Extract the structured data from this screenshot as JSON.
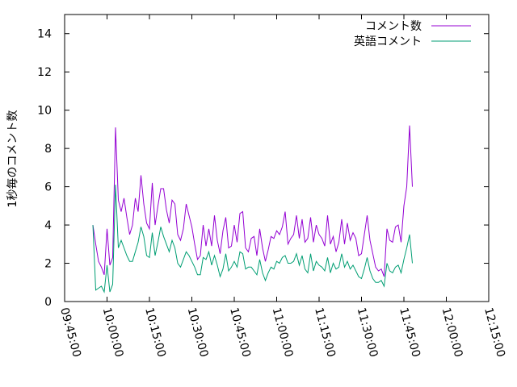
{
  "chart_data": {
    "type": "line",
    "title": "",
    "xlabel": "",
    "ylabel": "1秒毎のコメント数",
    "xlim": [
      "09:45:00",
      "12:15:00"
    ],
    "ylim": [
      0,
      15
    ],
    "xticks": [
      "09:45:00",
      "10:00:00",
      "10:15:00",
      "10:30:00",
      "10:45:00",
      "11:00:00",
      "11:15:00",
      "11:30:00",
      "11:45:00",
      "12:00:00",
      "12:15:00"
    ],
    "yticks": [
      0,
      2,
      4,
      6,
      8,
      10,
      12,
      14
    ],
    "grid": false,
    "legend_position": "top-right",
    "series": [
      {
        "name": "コメント数",
        "color": "#9400d3",
        "points": [
          [
            "09:55:00",
            4.0
          ],
          [
            "09:56:00",
            3.0
          ],
          [
            "09:57:00",
            2.1
          ],
          [
            "09:58:00",
            1.8
          ],
          [
            "09:59:00",
            1.4
          ],
          [
            "10:00:00",
            3.8
          ],
          [
            "10:01:00",
            1.9
          ],
          [
            "10:02:00",
            2.3
          ],
          [
            "10:03:00",
            9.1
          ],
          [
            "10:04:00",
            5.3
          ],
          [
            "10:05:00",
            4.7
          ],
          [
            "10:06:00",
            5.4
          ],
          [
            "10:07:00",
            4.4
          ],
          [
            "10:08:00",
            3.5
          ],
          [
            "10:09:00",
            4.0
          ],
          [
            "10:10:00",
            5.4
          ],
          [
            "10:11:00",
            4.7
          ],
          [
            "10:12:00",
            6.6
          ],
          [
            "10:13:00",
            5.1
          ],
          [
            "10:14:00",
            4.1
          ],
          [
            "10:15:00",
            3.8
          ],
          [
            "10:16:00",
            6.2
          ],
          [
            "10:17:00",
            4.0
          ],
          [
            "10:18:00",
            5.0
          ],
          [
            "10:19:00",
            5.9
          ],
          [
            "10:20:00",
            5.9
          ],
          [
            "10:21:00",
            4.8
          ],
          [
            "10:22:00",
            4.1
          ],
          [
            "10:23:00",
            5.3
          ],
          [
            "10:24:00",
            5.1
          ],
          [
            "10:25:00",
            3.5
          ],
          [
            "10:26:00",
            3.2
          ],
          [
            "10:27:00",
            3.8
          ],
          [
            "10:28:00",
            5.1
          ],
          [
            "10:29:00",
            4.5
          ],
          [
            "10:30:00",
            3.9
          ],
          [
            "10:31:00",
            3.0
          ],
          [
            "10:32:00",
            2.2
          ],
          [
            "10:33:00",
            2.4
          ],
          [
            "10:34:00",
            4.0
          ],
          [
            "10:35:00",
            2.9
          ],
          [
            "10:36:00",
            3.8
          ],
          [
            "10:37:00",
            2.9
          ],
          [
            "10:38:00",
            4.5
          ],
          [
            "10:39:00",
            3.2
          ],
          [
            "10:40:00",
            2.5
          ],
          [
            "10:41:00",
            3.7
          ],
          [
            "10:42:00",
            4.4
          ],
          [
            "10:43:00",
            2.8
          ],
          [
            "10:44:00",
            2.9
          ],
          [
            "10:45:00",
            4.0
          ],
          [
            "10:46:00",
            3.1
          ],
          [
            "10:47:00",
            4.6
          ],
          [
            "10:48:00",
            4.7
          ],
          [
            "10:49:00",
            2.8
          ],
          [
            "10:50:00",
            2.6
          ],
          [
            "10:51:00",
            3.3
          ],
          [
            "10:52:00",
            3.4
          ],
          [
            "10:53:00",
            2.4
          ],
          [
            "10:54:00",
            3.8
          ],
          [
            "10:55:00",
            2.8
          ],
          [
            "10:56:00",
            2.1
          ],
          [
            "10:57:00",
            2.7
          ],
          [
            "10:58:00",
            3.4
          ],
          [
            "10:59:00",
            3.3
          ],
          [
            "11:00:00",
            3.7
          ],
          [
            "11:01:00",
            3.5
          ],
          [
            "11:02:00",
            3.9
          ],
          [
            "11:03:00",
            4.7
          ],
          [
            "11:04:00",
            3.0
          ],
          [
            "11:05:00",
            3.3
          ],
          [
            "11:06:00",
            3.5
          ],
          [
            "11:07:00",
            4.5
          ],
          [
            "11:08:00",
            3.3
          ],
          [
            "11:09:00",
            4.3
          ],
          [
            "11:10:00",
            3.1
          ],
          [
            "11:11:00",
            3.3
          ],
          [
            "11:12:00",
            4.4
          ],
          [
            "11:13:00",
            3.1
          ],
          [
            "11:14:00",
            4.0
          ],
          [
            "11:15:00",
            3.5
          ],
          [
            "11:16:00",
            3.3
          ],
          [
            "11:17:00",
            2.9
          ],
          [
            "11:18:00",
            4.5
          ],
          [
            "11:19:00",
            3.0
          ],
          [
            "11:20:00",
            3.4
          ],
          [
            "11:21:00",
            2.6
          ],
          [
            "11:22:00",
            3.1
          ],
          [
            "11:23:00",
            4.3
          ],
          [
            "11:24:00",
            3.0
          ],
          [
            "11:25:00",
            4.1
          ],
          [
            "11:26:00",
            3.2
          ],
          [
            "11:27:00",
            3.6
          ],
          [
            "11:28:00",
            3.3
          ],
          [
            "11:29:00",
            2.4
          ],
          [
            "11:30:00",
            2.5
          ],
          [
            "11:31:00",
            3.5
          ],
          [
            "11:32:00",
            4.5
          ],
          [
            "11:33:00",
            3.2
          ],
          [
            "11:34:00",
            2.5
          ],
          [
            "11:35:00",
            1.8
          ],
          [
            "11:36:00",
            1.6
          ],
          [
            "11:37:00",
            1.7
          ],
          [
            "11:38:00",
            1.3
          ],
          [
            "11:39:00",
            3.8
          ],
          [
            "11:40:00",
            3.2
          ],
          [
            "11:41:00",
            3.1
          ],
          [
            "11:42:00",
            3.9
          ],
          [
            "11:43:00",
            4.0
          ],
          [
            "11:44:00",
            3.1
          ],
          [
            "11:45:00",
            5.0
          ],
          [
            "11:46:00",
            6.0
          ],
          [
            "11:47:00",
            9.2
          ],
          [
            "11:48:00",
            6.0
          ]
        ]
      },
      {
        "name": "英語コメント",
        "color": "#009e73",
        "points": [
          [
            "09:55:00",
            4.0
          ],
          [
            "09:56:00",
            0.6
          ],
          [
            "09:57:00",
            0.7
          ],
          [
            "09:58:00",
            0.8
          ],
          [
            "09:59:00",
            0.5
          ],
          [
            "10:00:00",
            1.9
          ],
          [
            "10:01:00",
            0.5
          ],
          [
            "10:02:00",
            0.9
          ],
          [
            "10:03:00",
            6.1
          ],
          [
            "10:04:00",
            2.8
          ],
          [
            "10:05:00",
            3.2
          ],
          [
            "10:06:00",
            2.8
          ],
          [
            "10:07:00",
            2.4
          ],
          [
            "10:08:00",
            2.1
          ],
          [
            "10:09:00",
            2.1
          ],
          [
            "10:10:00",
            2.6
          ],
          [
            "10:11:00",
            3.1
          ],
          [
            "10:12:00",
            3.9
          ],
          [
            "10:13:00",
            3.4
          ],
          [
            "10:14:00",
            2.4
          ],
          [
            "10:15:00",
            2.3
          ],
          [
            "10:16:00",
            3.6
          ],
          [
            "10:17:00",
            2.4
          ],
          [
            "10:18:00",
            3.1
          ],
          [
            "10:19:00",
            3.9
          ],
          [
            "10:20:00",
            3.4
          ],
          [
            "10:21:00",
            3.0
          ],
          [
            "10:22:00",
            2.6
          ],
          [
            "10:23:00",
            3.2
          ],
          [
            "10:24:00",
            2.8
          ],
          [
            "10:25:00",
            2.0
          ],
          [
            "10:26:00",
            1.8
          ],
          [
            "10:27:00",
            2.2
          ],
          [
            "10:28:00",
            2.6
          ],
          [
            "10:29:00",
            2.4
          ],
          [
            "10:30:00",
            2.1
          ],
          [
            "10:31:00",
            1.8
          ],
          [
            "10:32:00",
            1.4
          ],
          [
            "10:33:00",
            1.4
          ],
          [
            "10:34:00",
            2.3
          ],
          [
            "10:35:00",
            2.2
          ],
          [
            "10:36:00",
            2.6
          ],
          [
            "10:37:00",
            1.9
          ],
          [
            "10:38:00",
            2.4
          ],
          [
            "10:39:00",
            1.9
          ],
          [
            "10:40:00",
            1.3
          ],
          [
            "10:41:00",
            1.7
          ],
          [
            "10:42:00",
            2.5
          ],
          [
            "10:43:00",
            1.6
          ],
          [
            "10:44:00",
            1.8
          ],
          [
            "10:45:00",
            2.1
          ],
          [
            "10:46:00",
            1.8
          ],
          [
            "10:47:00",
            2.6
          ],
          [
            "10:48:00",
            2.5
          ],
          [
            "10:49:00",
            1.7
          ],
          [
            "10:50:00",
            1.8
          ],
          [
            "10:51:00",
            1.8
          ],
          [
            "10:52:00",
            1.6
          ],
          [
            "10:53:00",
            1.4
          ],
          [
            "10:54:00",
            2.2
          ],
          [
            "10:55:00",
            1.5
          ],
          [
            "10:56:00",
            1.1
          ],
          [
            "10:57:00",
            1.5
          ],
          [
            "10:58:00",
            1.8
          ],
          [
            "10:59:00",
            1.7
          ],
          [
            "11:00:00",
            2.1
          ],
          [
            "11:01:00",
            2.0
          ],
          [
            "11:02:00",
            2.3
          ],
          [
            "11:03:00",
            2.4
          ],
          [
            "11:04:00",
            2.0
          ],
          [
            "11:05:00",
            2.0
          ],
          [
            "11:06:00",
            2.1
          ],
          [
            "11:07:00",
            2.5
          ],
          [
            "11:08:00",
            1.9
          ],
          [
            "11:09:00",
            2.4
          ],
          [
            "11:10:00",
            1.7
          ],
          [
            "11:11:00",
            1.5
          ],
          [
            "11:12:00",
            2.5
          ],
          [
            "11:13:00",
            1.6
          ],
          [
            "11:14:00",
            2.1
          ],
          [
            "11:15:00",
            1.9
          ],
          [
            "11:16:00",
            1.8
          ],
          [
            "11:17:00",
            1.6
          ],
          [
            "11:18:00",
            2.3
          ],
          [
            "11:19:00",
            1.5
          ],
          [
            "11:20:00",
            2.0
          ],
          [
            "11:21:00",
            1.7
          ],
          [
            "11:22:00",
            1.8
          ],
          [
            "11:23:00",
            2.5
          ],
          [
            "11:24:00",
            1.8
          ],
          [
            "11:25:00",
            2.1
          ],
          [
            "11:26:00",
            1.7
          ],
          [
            "11:27:00",
            1.9
          ],
          [
            "11:28:00",
            1.6
          ],
          [
            "11:29:00",
            1.3
          ],
          [
            "11:30:00",
            1.2
          ],
          [
            "11:31:00",
            1.7
          ],
          [
            "11:32:00",
            2.3
          ],
          [
            "11:33:00",
            1.6
          ],
          [
            "11:34:00",
            1.2
          ],
          [
            "11:35:00",
            1.0
          ],
          [
            "11:36:00",
            1.0
          ],
          [
            "11:37:00",
            1.1
          ],
          [
            "11:38:00",
            0.8
          ],
          [
            "11:39:00",
            2.0
          ],
          [
            "11:40:00",
            1.6
          ],
          [
            "11:41:00",
            1.5
          ],
          [
            "11:42:00",
            1.8
          ],
          [
            "11:43:00",
            1.9
          ],
          [
            "11:44:00",
            1.5
          ],
          [
            "11:45:00",
            2.2
          ],
          [
            "11:46:00",
            2.8
          ],
          [
            "11:47:00",
            3.5
          ],
          [
            "11:48:00",
            2.0
          ]
        ]
      }
    ]
  }
}
